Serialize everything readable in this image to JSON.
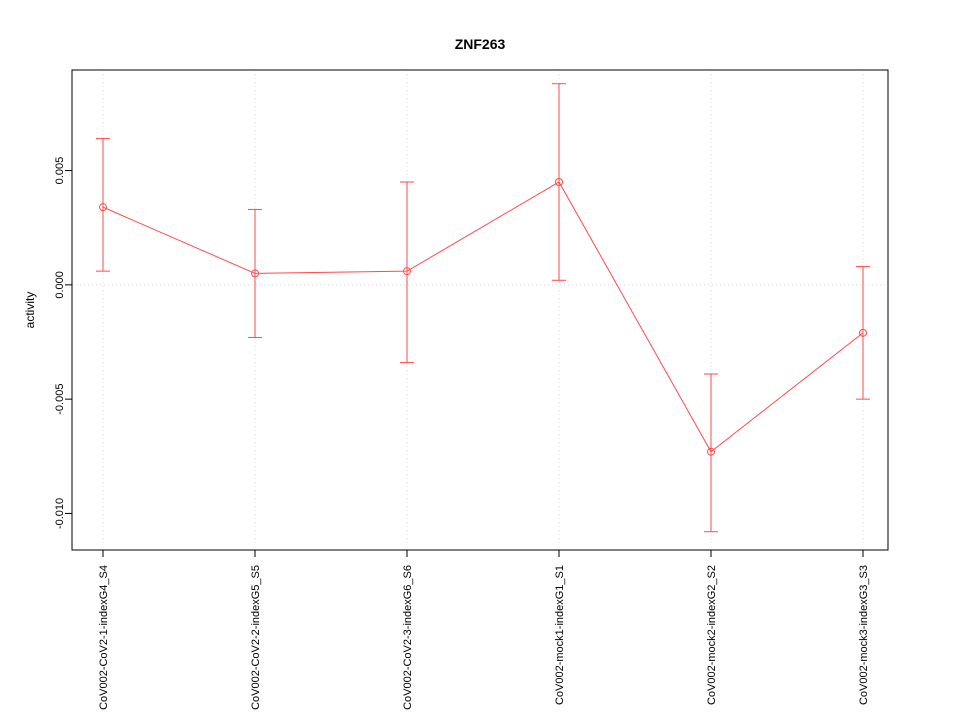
{
  "chart_data": {
    "type": "line",
    "title": "ZNF263",
    "ylabel": "activity",
    "xlabel": "",
    "categories": [
      "CoV002-CoV2-1-indexG4_S4",
      "CoV002-CoV2-2-indexG5_S5",
      "CoV002-CoV2-3-indexG6_S6",
      "CoV002-mock1-indexG1_S1",
      "CoV002-mock2-indexG2_S2",
      "CoV002-mock3-indexG3_S3"
    ],
    "series": [
      {
        "name": "activity",
        "values": [
          0.0034,
          0.0005,
          0.0006,
          0.0045,
          -0.0073,
          -0.0021
        ],
        "error_low": [
          0.0006,
          -0.0023,
          -0.0034,
          0.0002,
          -0.0108,
          -0.005
        ],
        "error_high": [
          0.0064,
          0.0033,
          0.0045,
          0.0088,
          -0.0039,
          0.0008
        ]
      }
    ],
    "ylim": [
      -0.0116,
      0.0094
    ],
    "yticks": [
      {
        "value": -0.01,
        "label": "-0.010"
      },
      {
        "value": -0.005,
        "label": "-0.005"
      },
      {
        "value": 0.0,
        "label": "0.000"
      },
      {
        "value": 0.005,
        "label": "0.005"
      }
    ],
    "grid": true,
    "zero_line": true,
    "legend_position": "none",
    "colors": {
      "series": "#ff4a4a",
      "grid": "#d8d8d8",
      "axis": "#000000",
      "text": "#000000"
    }
  }
}
